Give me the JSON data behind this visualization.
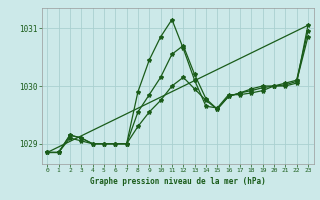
{
  "background_color": "#cce9e9",
  "grid_color": "#aad0d0",
  "line_color": "#1a5c1a",
  "xlabel": "Graphe pression niveau de la mer (hPa)",
  "ylim": [
    1028.65,
    1031.35
  ],
  "xlim": [
    -0.5,
    23.5
  ],
  "yticks": [
    1029,
    1030,
    1031
  ],
  "xticks": [
    0,
    1,
    2,
    3,
    4,
    5,
    6,
    7,
    8,
    9,
    10,
    11,
    12,
    13,
    14,
    15,
    16,
    17,
    18,
    19,
    20,
    21,
    22,
    23
  ],
  "series": [
    {
      "x": [
        0,
        1,
        2,
        3,
        4,
        5,
        6,
        7,
        8,
        9,
        10,
        11,
        12,
        13,
        14,
        15,
        16,
        17,
        18,
        19,
        20,
        21,
        22,
        23
      ],
      "y": [
        1028.85,
        1028.85,
        1029.15,
        1029.1,
        1029.0,
        1029.0,
        1029.0,
        1029.0,
        1029.9,
        1030.45,
        1030.85,
        1031.15,
        1030.65,
        1030.1,
        1029.65,
        1029.62,
        1029.85,
        1029.85,
        1029.88,
        1029.92,
        1030.0,
        1030.0,
        1030.05,
        1031.05
      ]
    },
    {
      "x": [
        0,
        1,
        2,
        3,
        4,
        5,
        6,
        7,
        8,
        9,
        10,
        11,
        12,
        13,
        14,
        15,
        16,
        17,
        18,
        19,
        20,
        21,
        22,
        23
      ],
      "y": [
        1028.85,
        1028.85,
        1029.15,
        1029.1,
        1029.0,
        1029.0,
        1029.0,
        1029.0,
        1029.55,
        1029.85,
        1030.15,
        1030.55,
        1030.7,
        1030.2,
        1029.78,
        1029.6,
        1029.82,
        1029.88,
        1029.95,
        1030.0,
        1030.0,
        1030.05,
        1030.1,
        1030.95
      ]
    },
    {
      "x": [
        0,
        1,
        2,
        3,
        4,
        5,
        6,
        7,
        8,
        9,
        10,
        11,
        12,
        13,
        14,
        15,
        16,
        17,
        18,
        19,
        20,
        21,
        22,
        23
      ],
      "y": [
        1028.85,
        1028.85,
        1029.1,
        1029.05,
        1029.0,
        1029.0,
        1029.0,
        1029.0,
        1029.3,
        1029.55,
        1029.75,
        1030.0,
        1030.15,
        1029.95,
        1029.75,
        1029.6,
        1029.82,
        1029.88,
        1029.92,
        1029.97,
        1030.0,
        1030.02,
        1030.08,
        1030.85
      ]
    },
    {
      "x": [
        0,
        23
      ],
      "y": [
        1028.85,
        1031.05
      ],
      "no_marker": true
    }
  ],
  "marker": "*",
  "markersize": 3.0,
  "linewidth": 0.9
}
